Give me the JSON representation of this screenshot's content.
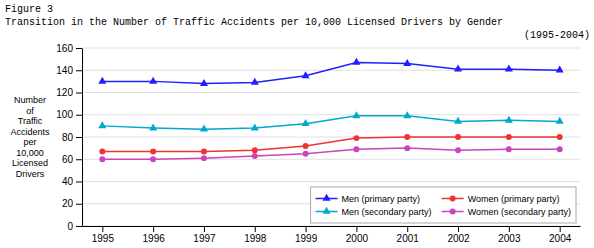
{
  "chart_data": {
    "type": "line",
    "title": "Figure 3",
    "subtitle": [
      "Transition in the Number of Traffic Accidents per 10,000 Licensed Drivers by Gender",
      "(1995-2004)"
    ],
    "y_label": "Number\nof\nTraffic\nAccidents\nper\n10,000\nLicensed\nDrivers",
    "x": [
      1995,
      1996,
      1997,
      1998,
      1999,
      2000,
      2001,
      2002,
      2003,
      2004
    ],
    "xlim": [
      1994.6,
      2004.4
    ],
    "xticks": [
      1995,
      1996,
      1997,
      1998,
      1999,
      2000,
      2001,
      2002,
      2003,
      2004
    ],
    "ylim": [
      0,
      160
    ],
    "yticks": [
      0,
      20,
      40,
      60,
      80,
      100,
      120,
      140,
      160
    ],
    "grid": "y",
    "legend": "lower right",
    "series": [
      {
        "name": "Men (primary party)",
        "color": "#1f1fff",
        "marker": "triangle",
        "values": [
          130,
          130,
          128,
          129,
          135,
          147,
          146,
          141,
          141,
          140
        ]
      },
      {
        "name": "Men (secondary party)",
        "color": "#00aacc",
        "marker": "triangle",
        "values": [
          90,
          88,
          87,
          88,
          92,
          99,
          99,
          94,
          95,
          94
        ]
      },
      {
        "name": "Women (primary party)",
        "color": "#ee3333",
        "marker": "circle",
        "values": [
          67,
          67,
          67,
          68,
          72,
          79,
          80,
          80,
          80,
          80
        ]
      },
      {
        "name": "Women (secondary party)",
        "color": "#cc44bb",
        "marker": "circle",
        "values": [
          60,
          60,
          61,
          63,
          65,
          69,
          70,
          68,
          69,
          69
        ]
      }
    ]
  }
}
